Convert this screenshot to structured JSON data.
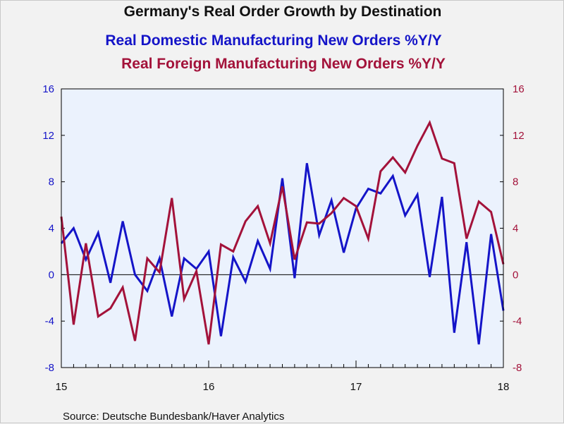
{
  "chart_data": {
    "type": "line",
    "title": "Germany's Real Order Growth by Destination",
    "source": "Source:  Deutsche Bundesbank/Haver Analytics",
    "x_tick_labels": [
      "15",
      "16",
      "17",
      "18"
    ],
    "y_left": {
      "ylim": [
        -8,
        16
      ],
      "ticks": [
        -8,
        -4,
        0,
        4,
        8,
        12,
        16
      ],
      "color": "#1414c8"
    },
    "y_right": {
      "ylim": [
        -8,
        16
      ],
      "ticks": [
        -8,
        -4,
        0,
        4,
        8,
        12,
        16
      ],
      "color": "#a3123a"
    },
    "plot_background": "#ebf2fd",
    "zero_line": true,
    "grid": false,
    "months_per_year": 12,
    "series": [
      {
        "name": "Real Domestic Manufacturing New Orders %Y/Y",
        "axis": "left",
        "color": "#1414c8",
        "start": "2015-01",
        "values": [
          2.7,
          4.0,
          1.3,
          3.6,
          -0.7,
          4.6,
          0.0,
          -1.4,
          1.4,
          -3.6,
          1.4,
          0.5,
          2.0,
          -5.3,
          1.5,
          -0.6,
          2.9,
          0.5,
          8.3,
          -0.3,
          9.6,
          3.4,
          6.4,
          1.9,
          5.7,
          7.4,
          7.0,
          8.5,
          5.1,
          6.9,
          -0.2,
          6.7,
          -5.0,
          2.8,
          -6.0,
          3.5,
          -3.1
        ]
      },
      {
        "name": "Real Foreign Manufacturing New Orders %Y/Y",
        "axis": "right",
        "color": "#a3123a",
        "start": "2015-01",
        "values": [
          5.0,
          -4.3,
          2.7,
          -3.6,
          -2.9,
          -1.1,
          -5.7,
          1.4,
          0.2,
          6.6,
          -2.1,
          0.3,
          -6.0,
          2.6,
          2.0,
          4.6,
          5.9,
          2.7,
          7.6,
          1.3,
          4.5,
          4.4,
          5.3,
          6.6,
          5.9,
          3.1,
          8.9,
          10.1,
          8.8,
          11.1,
          13.1,
          10.0,
          9.6,
          3.1,
          6.3,
          5.4,
          0.9
        ]
      }
    ]
  }
}
